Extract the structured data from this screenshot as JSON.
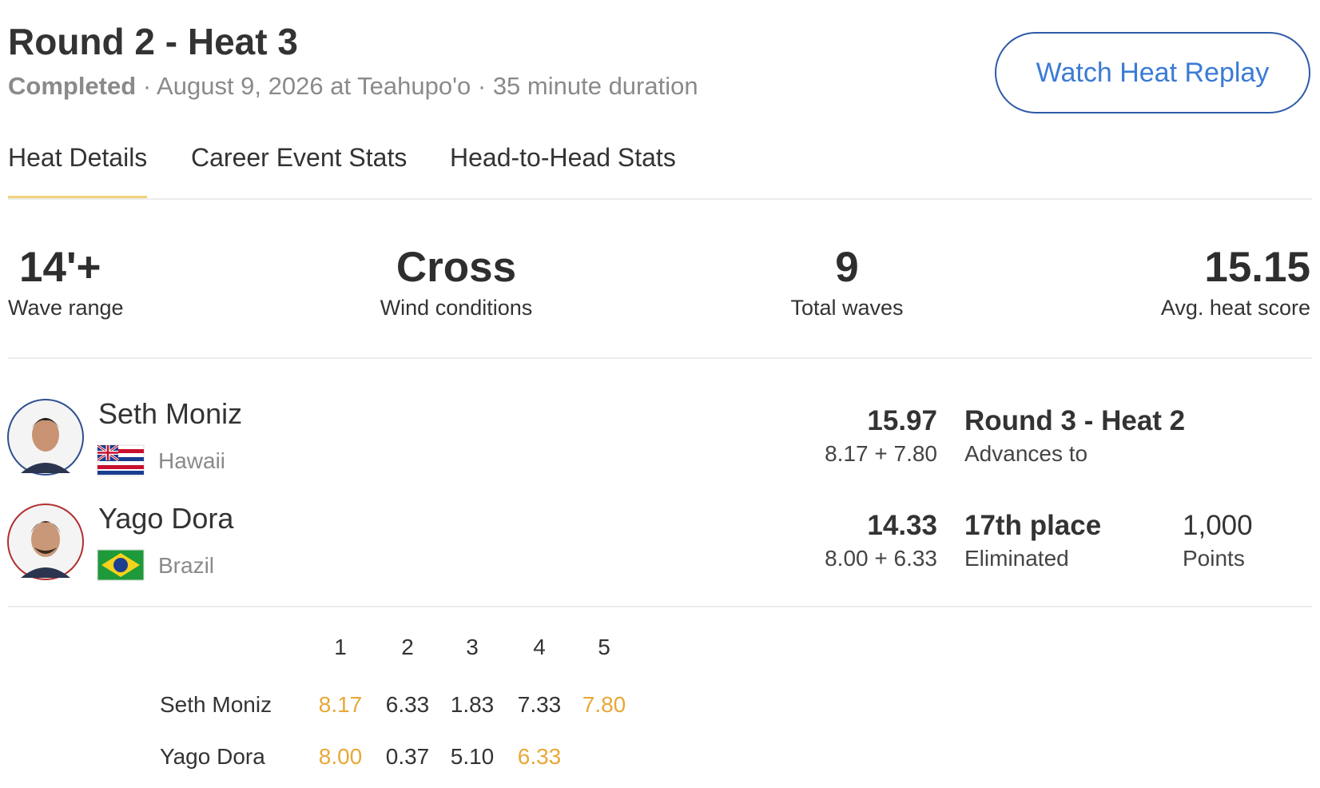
{
  "header": {
    "title": "Round 2 - Heat 3",
    "status": "Completed",
    "separator": "·",
    "details": [
      "August 9, 2026 at Teahupo'o",
      "35 minute duration"
    ],
    "button": "Watch Heat Replay"
  },
  "tabs": {
    "items": [
      "Heat Details",
      "Career Event Stats",
      "Head-to-Head Stats"
    ],
    "active": 0
  },
  "stats": [
    {
      "value": "14'+",
      "label": "Wave range"
    },
    {
      "value": "Cross",
      "label": "Wind conditions"
    },
    {
      "value": "9",
      "label": "Total waves"
    },
    {
      "value": "15.15",
      "label": "Avg. heat score"
    }
  ],
  "surfers": [
    {
      "name": "Seth Moniz",
      "country": "Hawaii",
      "total": "15.97",
      "breakdown": "8.17 + 7.80",
      "result": "Round 3 - Heat 2",
      "result_note": "Advances to"
    },
    {
      "name": "Yago Dora",
      "country": "Brazil",
      "total": "14.33",
      "breakdown": "8.00 + 6.33",
      "result": "17th place",
      "result_note": "Eliminated",
      "points": "1,000",
      "points_label": "Points"
    }
  ],
  "wave_table": {
    "columns": [
      "1",
      "2",
      "3",
      "4",
      "5"
    ],
    "rows": [
      {
        "name": "Seth Moniz",
        "scores": [
          "8.17",
          "6.33",
          "1.83",
          "7.33",
          "7.80"
        ],
        "counted": [
          0,
          4
        ]
      },
      {
        "name": "Yago Dora",
        "scores": [
          "8.00",
          "0.37",
          "5.10",
          "6.33"
        ],
        "counted": [
          0,
          3
        ]
      }
    ]
  }
}
